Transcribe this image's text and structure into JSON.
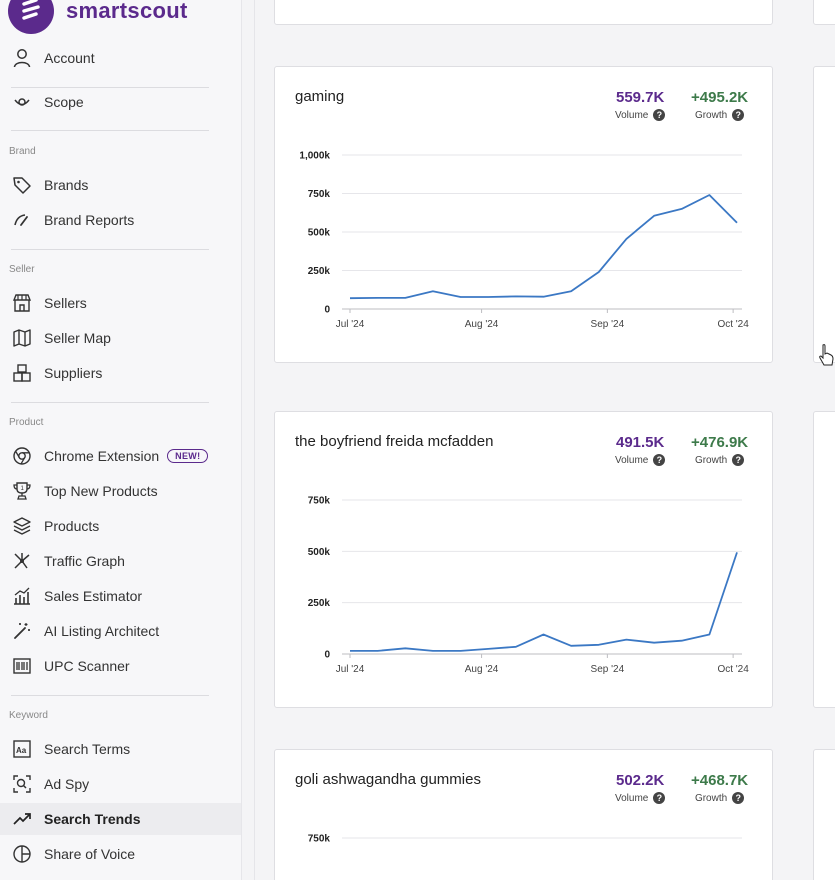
{
  "app": {
    "name": "smartscout"
  },
  "sidebar": {
    "account": "Account",
    "scope": "Scope",
    "sections": {
      "brand": "Brand",
      "seller": "Seller",
      "product": "Product",
      "keyword": "Keyword"
    },
    "brand_items": [
      "Brands",
      "Brand Reports"
    ],
    "seller_items": [
      "Sellers",
      "Seller Map",
      "Suppliers"
    ],
    "product_items": [
      "Chrome Extension",
      "Top New Products",
      "Products",
      "Traffic Graph",
      "Sales Estimator",
      "AI Listing Architect",
      "UPC Scanner"
    ],
    "product_badge": "NEW!",
    "keyword_items": [
      "Search Terms",
      "Ad Spy",
      "Search Trends",
      "Share of Voice"
    ]
  },
  "cards": [
    {
      "title": "gaming",
      "volume": "559.7K",
      "volume_label": "Volume",
      "growth": "+495.2K",
      "growth_label": "Growth"
    },
    {
      "title": "the boyfriend freida mcfadden",
      "volume": "491.5K",
      "volume_label": "Volume",
      "growth": "+476.9K",
      "growth_label": "Growth"
    },
    {
      "title": "goli ashwagandha gummies",
      "volume": "502.2K",
      "volume_label": "Volume",
      "growth": "+468.7K",
      "growth_label": "Growth"
    }
  ],
  "chart_data": [
    {
      "type": "line",
      "title": "gaming",
      "x_ticks": [
        "Jul '24",
        "Aug '24",
        "Sep '24",
        "Oct '24"
      ],
      "y_ticks": [
        "0",
        "250k",
        "500k",
        "750k",
        "1,000k"
      ],
      "ylim": [
        0,
        1000000
      ],
      "values": [
        70000,
        72000,
        72000,
        115000,
        78000,
        78000,
        82000,
        80000,
        115000,
        240000,
        455000,
        605000,
        650000,
        740000,
        560000
      ],
      "color": "#3b78c4",
      "grid": true
    },
    {
      "type": "line",
      "title": "the boyfriend freida mcfadden",
      "x_ticks": [
        "Jul '24",
        "Aug '24",
        "Sep '24",
        "Oct '24"
      ],
      "y_ticks": [
        "0",
        "250k",
        "500k",
        "750k"
      ],
      "ylim": [
        0,
        750000
      ],
      "values": [
        15000,
        15000,
        28000,
        15000,
        15000,
        25000,
        35000,
        95000,
        40000,
        45000,
        70000,
        55000,
        65000,
        95000,
        495000
      ],
      "color": "#3b78c4",
      "grid": true
    },
    {
      "type": "line",
      "title": "goli ashwagandha gummies",
      "y_ticks": [
        "750k"
      ],
      "ylim": [
        0,
        750000
      ],
      "values": [],
      "color": "#3b78c4",
      "grid": true
    }
  ]
}
